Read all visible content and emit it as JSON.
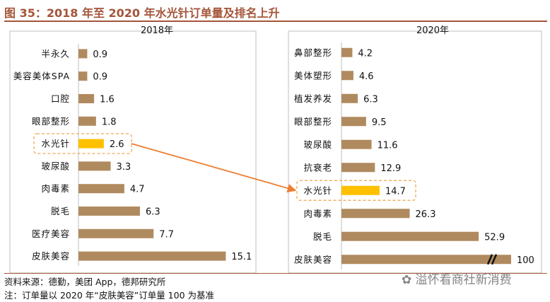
{
  "figure": {
    "title": "图 35：2018 年至 2020 年水光针订单量及排名上升",
    "source": "资料来源：德勤，美团 App，德邦研究所",
    "note": "注：订单量以 2020 年“皮肤美容”订单量 100 为基准",
    "watermark": "溢怀看商社新消费",
    "colors": {
      "bar": "#b08a5f",
      "highlight": "#ffc000",
      "arrow": "#ed7d31",
      "accent": "#a4553a",
      "dashed_box": "#f0b060"
    }
  },
  "chart_data": [
    {
      "type": "bar",
      "orientation": "horizontal",
      "title": "2018年",
      "categories": [
        "半永久",
        "美容美体SPA",
        "口腔",
        "眼部整形",
        "水光针",
        "玻尿酸",
        "肉毒素",
        "脱毛",
        "医疗美容",
        "皮肤美容"
      ],
      "values": [
        0.9,
        0.9,
        1.6,
        1.8,
        2.6,
        3.3,
        4.7,
        6.3,
        7.7,
        15.1
      ],
      "value_labels": [
        "0.9",
        "0.9",
        "1.6",
        "1.8",
        "2.6",
        "3.3",
        "4.7",
        "6.3",
        "7.7",
        "15.1"
      ],
      "highlight": "水光针",
      "xlim": [
        0,
        20
      ]
    },
    {
      "type": "bar",
      "orientation": "horizontal",
      "title": "2020年",
      "categories": [
        "鼻部整形",
        "美体塑形",
        "植发养发",
        "眼部整形",
        "玻尿酸",
        "抗衰老",
        "水光针",
        "肉毒素",
        "脱毛",
        "皮肤美容"
      ],
      "values": [
        4.2,
        4.6,
        6.3,
        9.5,
        11.6,
        12.9,
        14.7,
        26.3,
        52.9,
        100
      ],
      "value_labels": [
        "4.2",
        "4.6",
        "6.3",
        "9.5",
        "11.6",
        "12.9",
        "14.7",
        "26.3",
        "52.9",
        "100"
      ],
      "highlight": "水光针",
      "xlim": [
        0,
        70
      ],
      "axis_break": true
    }
  ]
}
